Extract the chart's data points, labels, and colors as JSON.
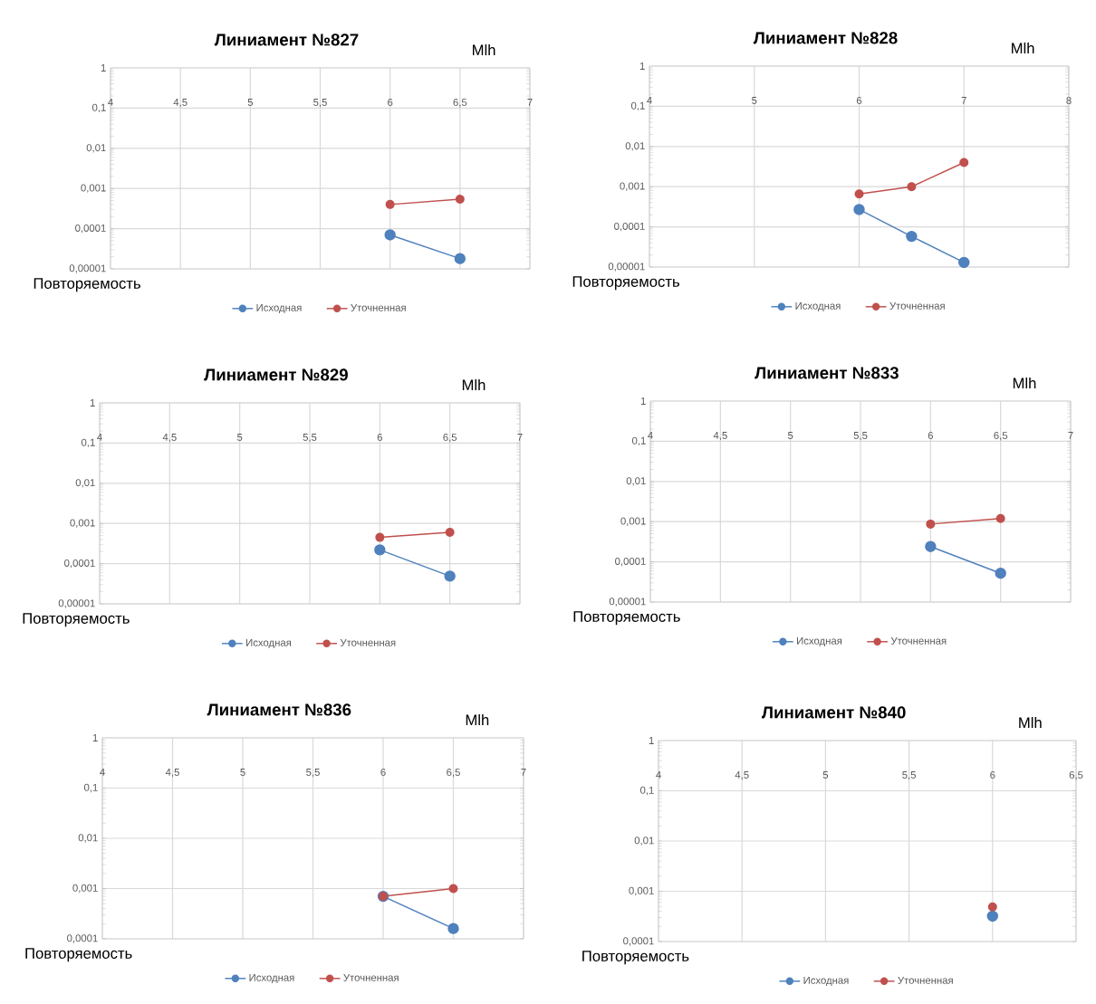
{
  "chart_data": [
    {
      "type": "line",
      "title": "Линиамент №827",
      "xlabel": "Mlh",
      "ylabel": "Повторяемость",
      "x": [
        6,
        6.5
      ],
      "series": [
        {
          "name": "Исходная",
          "color": "#4f81bd",
          "values": [
            7e-05,
            1.8e-05
          ]
        },
        {
          "name": "Уточненная",
          "color": "#c0504d",
          "values": [
            0.0004,
            0.00054
          ]
        }
      ],
      "xlim": [
        4,
        7
      ],
      "xticks": [
        4,
        {
          "value": 4.5,
          "label": "4,5"
        },
        5,
        {
          "value": 5.5,
          "label": "5,5"
        },
        6,
        {
          "value": 6.5,
          "label": "6,5"
        },
        7
      ],
      "ylim": [
        1e-05,
        1
      ],
      "yticks": [
        {
          "value": 1e-05,
          "label": "0,00001"
        },
        {
          "value": 0.0001,
          "label": "0,0001"
        },
        {
          "value": 0.001,
          "label": "0,001"
        },
        {
          "value": 0.01,
          "label": "0,01"
        },
        {
          "value": 0.1,
          "label": "0,1"
        },
        1
      ],
      "log": "y",
      "grid": true,
      "legend": "bottom",
      "marker": "circle"
    },
    {
      "type": "line",
      "title": "Линиамент №828",
      "xlabel": "Mlh",
      "ylabel": "Повторяемость",
      "x": [
        6,
        6.5,
        7
      ],
      "series": [
        {
          "name": "Исходная",
          "color": "#4f81bd",
          "values": [
            0.00027,
            5.8e-05,
            1.3e-05
          ]
        },
        {
          "name": "Уточненная",
          "color": "#c0504d",
          "values": [
            0.00066,
            0.001,
            0.004
          ]
        }
      ],
      "xlim": [
        4,
        8
      ],
      "xticks": [
        4,
        5,
        6,
        7,
        8
      ],
      "ylim": [
        1e-05,
        1
      ],
      "yticks": [
        {
          "value": 1e-05,
          "label": "0,00001"
        },
        {
          "value": 0.0001,
          "label": "0,0001"
        },
        {
          "value": 0.001,
          "label": "0,001"
        },
        {
          "value": 0.01,
          "label": "0,01"
        },
        {
          "value": 0.1,
          "label": "0,1"
        },
        1
      ],
      "log": "y",
      "grid": true,
      "legend": "bottom",
      "marker": "circle"
    },
    {
      "type": "line",
      "title": "Линиамент №829",
      "xlabel": "Mlh",
      "ylabel": "Повторяемость",
      "x": [
        6,
        6.5
      ],
      "series": [
        {
          "name": "Исходная",
          "color": "#4f81bd",
          "values": [
            0.00022,
            4.9e-05
          ]
        },
        {
          "name": "Уточненная",
          "color": "#c0504d",
          "values": [
            0.00045,
            0.0006
          ]
        }
      ],
      "xlim": [
        4,
        7
      ],
      "xticks": [
        4,
        {
          "value": 4.5,
          "label": "4,5"
        },
        5,
        {
          "value": 5.5,
          "label": "5,5"
        },
        6,
        {
          "value": 6.5,
          "label": "6,5"
        },
        7
      ],
      "ylim": [
        1e-05,
        1
      ],
      "yticks": [
        {
          "value": 1e-05,
          "label": "0,00001"
        },
        {
          "value": 0.0001,
          "label": "0,0001"
        },
        {
          "value": 0.001,
          "label": "0,001"
        },
        {
          "value": 0.01,
          "label": "0,01"
        },
        {
          "value": 0.1,
          "label": "0,1"
        },
        1
      ],
      "log": "y",
      "grid": true,
      "legend": "bottom",
      "marker": "circle"
    },
    {
      "type": "line",
      "title": "Линиамент №833",
      "xlabel": "Mlh",
      "ylabel": "Повторяемость",
      "x": [
        6,
        6.5
      ],
      "series": [
        {
          "name": "Исходная",
          "color": "#4f81bd",
          "values": [
            0.00024,
            5.2e-05
          ]
        },
        {
          "name": "Уточненная",
          "color": "#c0504d",
          "values": [
            0.00087,
            0.0012
          ]
        }
      ],
      "xlim": [
        4,
        7
      ],
      "xticks": [
        4,
        {
          "value": 4.5,
          "label": "4,5"
        },
        5,
        {
          "value": 5.5,
          "label": "5,5"
        },
        6,
        {
          "value": 6.5,
          "label": "6,5"
        },
        7
      ],
      "ylim": [
        1e-05,
        1
      ],
      "yticks": [
        {
          "value": 1e-05,
          "label": "0,00001"
        },
        {
          "value": 0.0001,
          "label": "0,0001"
        },
        {
          "value": 0.001,
          "label": "0,001"
        },
        {
          "value": 0.01,
          "label": "0,01"
        },
        {
          "value": 0.1,
          "label": "0,1"
        },
        1
      ],
      "log": "y",
      "grid": true,
      "legend": "bottom",
      "marker": "circle"
    },
    {
      "type": "line",
      "title": "Линиамент №836",
      "xlabel": "Mlh",
      "ylabel": "Повторяемость",
      "x": [
        6,
        6.5
      ],
      "series": [
        {
          "name": "Исходная",
          "color": "#4f81bd",
          "values": [
            0.0007,
            0.00016
          ]
        },
        {
          "name": "Уточненная",
          "color": "#c0504d",
          "values": [
            0.0007,
            0.001
          ]
        }
      ],
      "xlim": [
        4,
        7
      ],
      "xticks": [
        4,
        {
          "value": 4.5,
          "label": "4,5"
        },
        5,
        {
          "value": 5.5,
          "label": "5,5"
        },
        6,
        {
          "value": 6.5,
          "label": "6,5"
        },
        7
      ],
      "ylim": [
        0.0001,
        1
      ],
      "yticks": [
        {
          "value": 0.0001,
          "label": "0,0001"
        },
        {
          "value": 0.001,
          "label": "0,001"
        },
        {
          "value": 0.01,
          "label": "0,01"
        },
        {
          "value": 0.1,
          "label": "0,1"
        },
        1
      ],
      "log": "y",
      "grid": true,
      "legend": "bottom",
      "marker": "circle"
    },
    {
      "type": "line",
      "title": "Линиамент №840",
      "xlabel": "Mlh",
      "ylabel": "Повторяемость",
      "x": [
        6
      ],
      "series": [
        {
          "name": "Исходная",
          "color": "#4f81bd",
          "values": [
            0.00032
          ]
        },
        {
          "name": "Уточненная",
          "color": "#c0504d",
          "values": [
            0.00049
          ]
        }
      ],
      "xlim": [
        4,
        6.5
      ],
      "xticks": [
        4,
        {
          "value": 4.5,
          "label": "4,5"
        },
        5,
        {
          "value": 5.5,
          "label": "5,5"
        },
        6,
        {
          "value": 6.5,
          "label": "6,5"
        }
      ],
      "ylim": [
        0.0001,
        1
      ],
      "yticks": [
        {
          "value": 0.0001,
          "label": "0,0001"
        },
        {
          "value": 0.001,
          "label": "0,001"
        },
        {
          "value": 0.01,
          "label": "0,01"
        },
        {
          "value": 0.1,
          "label": "0,1"
        },
        1
      ],
      "log": "y",
      "grid": true,
      "legend": "bottom",
      "marker": "circle"
    }
  ]
}
